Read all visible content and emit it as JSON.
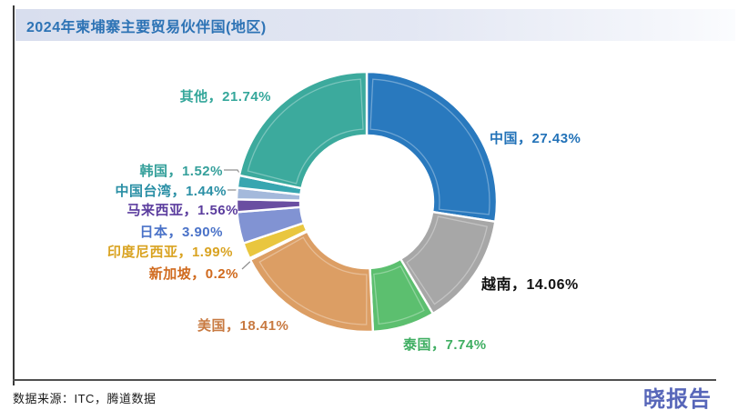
{
  "header": {
    "title": "2024年柬埔寨主要贸易伙伴国(地区)"
  },
  "footer": {
    "source": "数据来源：ITC，腾道数据",
    "brand": "晓报告"
  },
  "chart_data": {
    "type": "pie",
    "subtype": "donut",
    "title": "2024年柬埔寨主要贸易伙伴国(地区)",
    "start_angle": "top, clockwise",
    "inner_radius_ratio": 0.51,
    "total": 99.99,
    "slices": [
      {
        "name": "中国",
        "value": 27.43,
        "color": "#2979be",
        "label": "中国，27.43%",
        "label_color": "#2272b8"
      },
      {
        "name": "越南",
        "value": 14.06,
        "color": "#a7a7a7",
        "label": "越南，14.06%",
        "label_color": "#111111"
      },
      {
        "name": "泰国",
        "value": 7.74,
        "color": "#5cbf6f",
        "label": "泰国，7.74%",
        "label_color": "#3fae62"
      },
      {
        "name": "美国",
        "value": 18.41,
        "color": "#dc9e64",
        "label": "美国，18.41%",
        "label_color": "#c87a42"
      },
      {
        "name": "新加坡",
        "value": 0.2,
        "color": "#cf6c35",
        "label": "新加坡，0.2%",
        "label_color": "#d06a1e"
      },
      {
        "name": "印度尼西亚",
        "value": 1.99,
        "color": "#e9c63f",
        "label": "印度尼西亚，1.99%",
        "label_color": "#d9a321"
      },
      {
        "name": "日本",
        "value": 3.9,
        "color": "#8193d3",
        "label": "日本，3.90%",
        "label_color": "#4a72c8"
      },
      {
        "name": "马来西亚",
        "value": 1.56,
        "color": "#6a4ea1",
        "label": "马来西亚，1.56%",
        "label_color": "#5b3d9e"
      },
      {
        "name": "中国台湾",
        "value": 1.44,
        "color": "#a4b9db",
        "label": "中国台湾，1.44%",
        "label_color": "#2a8fa5"
      },
      {
        "name": "韩国",
        "value": 1.52,
        "color": "#38a6b0",
        "label": "韩国，1.52%",
        "label_color": "#35a09b"
      },
      {
        "name": "其他",
        "value": 21.74,
        "color": "#3caa9d",
        "label": "其他，21.74%",
        "label_color": "#35a79b"
      }
    ]
  }
}
